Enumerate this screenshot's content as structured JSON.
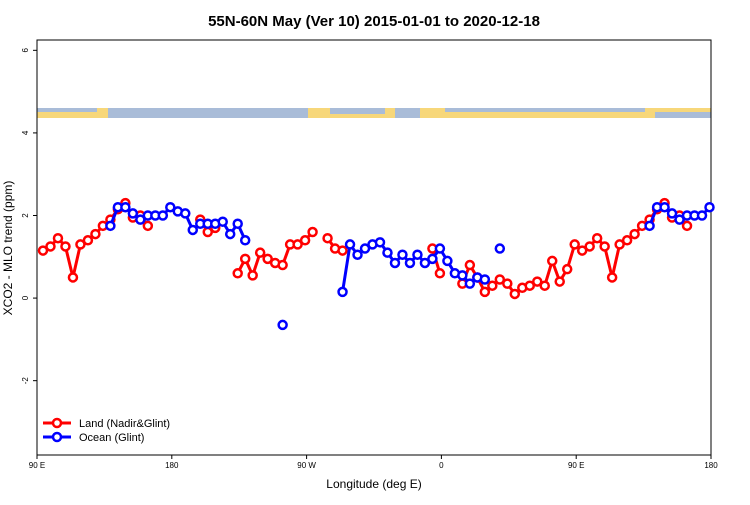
{
  "chart_data": {
    "type": "line",
    "title": "55N-60N May (Ver 10)   2015-01-01 to 2020-12-18",
    "x_label": "Longitude (deg E)",
    "y_label": "XCO2 - MLO trend (ppm)",
    "x": [
      94,
      99,
      104,
      109,
      114,
      119,
      124,
      129,
      134,
      139,
      144,
      149,
      154,
      159,
      164,
      169,
      174,
      179,
      184,
      189,
      194,
      199,
      204,
      209,
      214,
      219,
      224,
      229,
      234,
      239,
      244,
      249,
      254,
      259,
      264,
      269,
      274,
      279,
      284,
      289,
      294,
      299,
      304,
      309,
      314,
      319,
      324,
      329,
      334,
      339,
      344,
      349,
      354,
      359,
      364,
      369,
      374,
      379,
      384,
      389,
      394,
      399,
      404,
      409,
      414,
      419,
      424,
      429,
      434,
      439,
      444,
      449,
      454,
      459,
      464,
      469,
      474,
      479,
      484,
      489,
      494,
      499,
      504,
      509,
      514,
      519,
      524,
      529,
      534,
      539
    ],
    "series": [
      {
        "name": "Land (Nadir&Glint)",
        "color": "#ff0000",
        "values": [
          1.15,
          1.25,
          1.45,
          1.25,
          0.5,
          1.3,
          1.4,
          1.55,
          1.75,
          1.9,
          2.15,
          2.3,
          1.95,
          2.0,
          1.75,
          null,
          null,
          null,
          null,
          null,
          null,
          1.9,
          1.6,
          1.7,
          null,
          null,
          0.6,
          0.95,
          0.55,
          1.1,
          0.95,
          0.85,
          0.8,
          1.3,
          1.3,
          1.4,
          1.6,
          null,
          1.45,
          1.2,
          1.15,
          null,
          null,
          null,
          null,
          null,
          null,
          null,
          null,
          null,
          null,
          null,
          1.2,
          0.6,
          null,
          null,
          0.35,
          0.8,
          0.5,
          0.15,
          0.3,
          0.45,
          0.35,
          0.1,
          0.25,
          0.3,
          0.4,
          0.3,
          0.9,
          0.4,
          0.7,
          1.3,
          1.15,
          1.25,
          1.45,
          1.25,
          0.5,
          1.3,
          1.4,
          1.55,
          1.75,
          1.9,
          2.15,
          2.3,
          1.95,
          2.0,
          1.75,
          null,
          null,
          null
        ]
      },
      {
        "name": "Ocean (Glint)",
        "color": "#0000ff",
        "values": [
          null,
          null,
          null,
          null,
          null,
          null,
          null,
          null,
          null,
          1.75,
          2.2,
          2.2,
          2.05,
          1.9,
          2.0,
          2.0,
          2.0,
          2.2,
          2.1,
          2.05,
          1.65,
          1.8,
          1.8,
          1.8,
          1.85,
          1.55,
          1.8,
          1.4,
          null,
          null,
          null,
          null,
          -0.65,
          null,
          null,
          null,
          null,
          null,
          null,
          null,
          0.15,
          1.3,
          1.05,
          1.2,
          1.3,
          1.35,
          1.1,
          0.85,
          1.05,
          0.85,
          1.05,
          0.85,
          0.95,
          1.2,
          0.9,
          0.6,
          0.55,
          0.35,
          0.5,
          0.45,
          null,
          1.2,
          null,
          null,
          null,
          null,
          null,
          null,
          null,
          null,
          null,
          null,
          null,
          null,
          null,
          null,
          null,
          null,
          null,
          null,
          null,
          1.75,
          2.2,
          2.2,
          2.05,
          1.9,
          2.0,
          2.0,
          2.0,
          2.2
        ]
      }
    ],
    "xlim": [
      90,
      540
    ],
    "xticks": [
      {
        "value": 90,
        "label": "90 E"
      },
      180,
      {
        "value": 270,
        "label": "90 W"
      },
      {
        "value": 360,
        "label": "0"
      },
      {
        "value": 450,
        "label": "90 E"
      },
      {
        "value": 540,
        "label": "180"
      }
    ],
    "ylim": [
      -3.8,
      6.25
    ],
    "yticks": [
      6,
      4,
      2,
      0,
      -2
    ],
    "legend": "bottomleft"
  }
}
